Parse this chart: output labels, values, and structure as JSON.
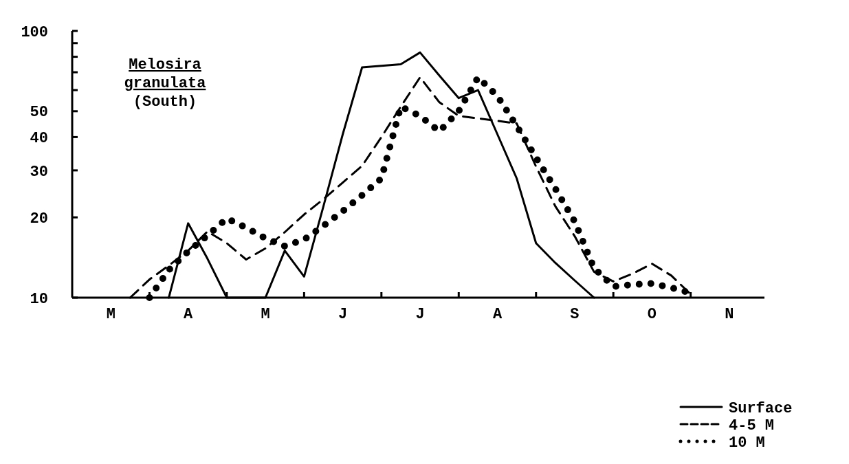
{
  "chart_data": {
    "type": "line",
    "title": "Melosira granulata (South)",
    "log": "y",
    "grid": false,
    "legend": "bottom right",
    "marker": "none",
    "categories": [
      null,
      null,
      "M",
      null,
      null,
      null,
      "A",
      null,
      null,
      null,
      "M",
      null,
      null,
      null,
      "J",
      null,
      null,
      null,
      "J",
      null,
      null,
      null,
      "A",
      null,
      null,
      null,
      "S",
      null,
      null,
      null,
      "O",
      null,
      null,
      null,
      "N",
      null
    ],
    "ylim": [
      10,
      100
    ],
    "yticks": [
      10,
      20,
      30,
      40,
      50,
      {
        "value": 60,
        "label": null
      },
      {
        "value": 70,
        "label": null
      },
      {
        "value": 80,
        "label": null
      },
      {
        "value": 90,
        "label": null
      },
      100
    ],
    "series": [
      {
        "name": "Surface",
        "color": "#000000",
        "line_style": "solid",
        "values": [
          null,
          null,
          null,
          null,
          null,
          10,
          19,
          14,
          10,
          10,
          10,
          15,
          12,
          22,
          41,
          73,
          74,
          75,
          83,
          68,
          56,
          60,
          41,
          28,
          16,
          13.5,
          11.6,
          10,
          null,
          null,
          null,
          null,
          null,
          null,
          null,
          null
        ]
      },
      {
        "name": "4-5 M",
        "color": "#000000",
        "line_style": "dashed",
        "values": [
          null,
          null,
          null,
          10,
          11.7,
          13.2,
          15,
          17.7,
          16,
          13.9,
          15.3,
          17.6,
          20.5,
          23.4,
          27,
          31.2,
          40,
          52,
          67,
          54,
          48,
          47,
          46,
          45,
          31,
          22,
          17,
          12.5,
          11.5,
          12.3,
          13.4,
          12.1,
          10.3,
          null,
          null,
          null
        ]
      },
      {
        "name": "10 M",
        "color": "#000000",
        "line_style": "dotted",
        "values": [
          null,
          null,
          null,
          null,
          10,
          12.7,
          14.9,
          17.1,
          19.8,
          18.3,
          16.7,
          15.6,
          16.5,
          18.6,
          21.1,
          24.2,
          28,
          52,
          48,
          42,
          50,
          67,
          57,
          44,
          33.5,
          25.6,
          19.3,
          12.9,
          11,
          11.2,
          11.3,
          10.9,
          10.4,
          null,
          null,
          null
        ]
      }
    ]
  }
}
